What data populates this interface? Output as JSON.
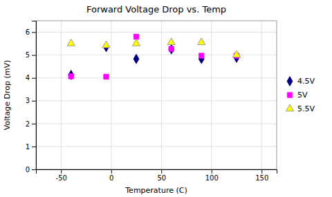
{
  "chart_data": {
    "type": "scatter",
    "title": "Forward Voltage Drop vs. Temp",
    "xlabel": "Temperature (C)",
    "ylabel": "Voltage Drop (mV)",
    "xlim": [
      -75,
      165
    ],
    "ylim": [
      0,
      6.5
    ],
    "xticks": [
      -50,
      0,
      50,
      100,
      150
    ],
    "yticks": [
      0,
      1,
      2,
      3,
      4,
      5,
      6
    ],
    "grid": true,
    "legend": "right",
    "series": [
      {
        "name": "4.5V",
        "color": "#000080",
        "marker": "diamond",
        "x": [
          -40,
          -5,
          25,
          60,
          90,
          125
        ],
        "values": [
          4.13,
          5.35,
          4.83,
          5.25,
          4.83,
          4.88
        ]
      },
      {
        "name": "5V",
        "color": "#FF00FF",
        "marker": "square",
        "x": [
          -40,
          -5,
          25,
          60,
          90,
          125
        ],
        "values": [
          4.07,
          4.05,
          5.8,
          5.27,
          4.97,
          4.97
        ]
      },
      {
        "name": "5.5V",
        "color": "#FFFF00",
        "marker": "triangle",
        "x": [
          -40,
          -5,
          25,
          60,
          90,
          125
        ],
        "values": [
          5.5,
          5.42,
          5.5,
          5.55,
          5.55,
          5.0
        ]
      }
    ]
  }
}
